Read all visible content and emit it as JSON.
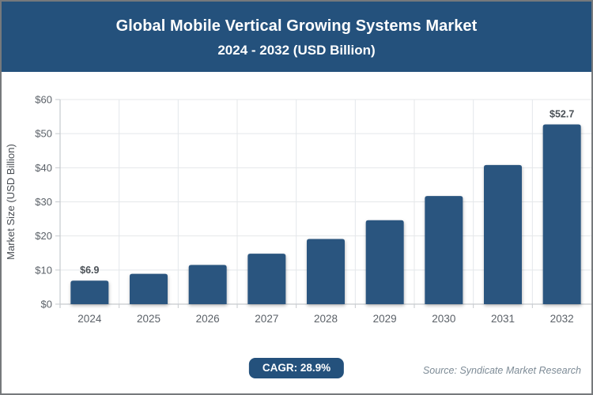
{
  "header": {
    "title_line1": "Global Mobile Vertical Growing Systems Market",
    "title_line2": "2024 - 2032 (USD Billion)",
    "background": "#24517c",
    "text_color": "#ffffff"
  },
  "chart_data": {
    "type": "bar",
    "title": "Global Mobile Vertical Growing Systems Market 2024 - 2032 (USD Billion)",
    "categories": [
      "2024",
      "2025",
      "2026",
      "2027",
      "2028",
      "2029",
      "2030",
      "2031",
      "2032"
    ],
    "values": [
      6.9,
      8.9,
      11.5,
      14.8,
      19.1,
      24.6,
      31.7,
      40.8,
      52.7
    ],
    "data_labels": [
      "$6.9",
      "",
      "",
      "",
      "",
      "",
      "",
      "",
      "$52.7"
    ],
    "xlabel": "",
    "ylabel": "Market Size (USD Billion)",
    "ylim": [
      0,
      60
    ],
    "yticks": [
      0,
      10,
      20,
      30,
      40,
      50,
      60
    ],
    "ytick_labels": [
      "$0",
      "$10",
      "$20",
      "$30",
      "$40",
      "$50",
      "$60"
    ],
    "grid": true,
    "legend": "none",
    "bar_color": "#2a547f",
    "grid_color": "#e4e7ea",
    "axis_color": "#c6cace",
    "tick_text_color": "#5b6168",
    "ylabel_color": "#474c52",
    "data_label_color": "#4a5056"
  },
  "footer": {
    "cagr_label": "CAGR: 28.9%",
    "badge_color": "#24517c",
    "source": "Source: Syndicate Market Research",
    "source_color": "#7d8b96"
  }
}
